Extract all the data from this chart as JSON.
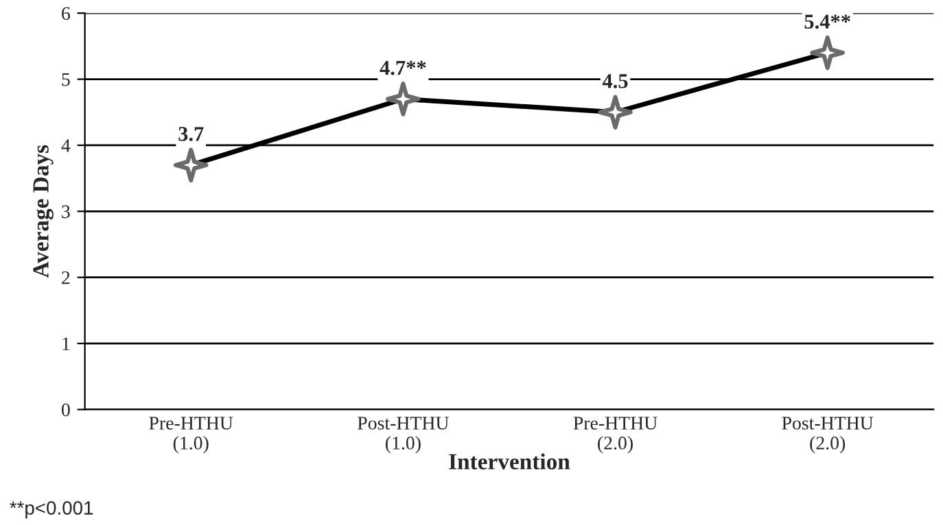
{
  "chart_data": {
    "type": "line",
    "xlabel": "Intervention",
    "ylabel": "Average Days",
    "categories": [
      "Pre-HTHU\n(1.0)",
      "Post-HTHU\n(1.0)",
      "Pre-HTHU\n(2.0)",
      "Post-HTHU\n(2.0)"
    ],
    "series": [
      {
        "color": "#000000",
        "values": [
          3.7,
          4.7,
          4.5,
          5.4
        ],
        "value_labels": [
          "3.7",
          "4.7**",
          "4.5",
          "5.4**"
        ]
      }
    ],
    "ylim": [
      0,
      6
    ],
    "yticks": [
      0,
      1,
      2,
      3,
      4,
      5,
      6
    ],
    "grid": "y",
    "marker": "star",
    "line_style": "solid",
    "legend": false,
    "annotations": [
      "**p<0.001"
    ]
  }
}
